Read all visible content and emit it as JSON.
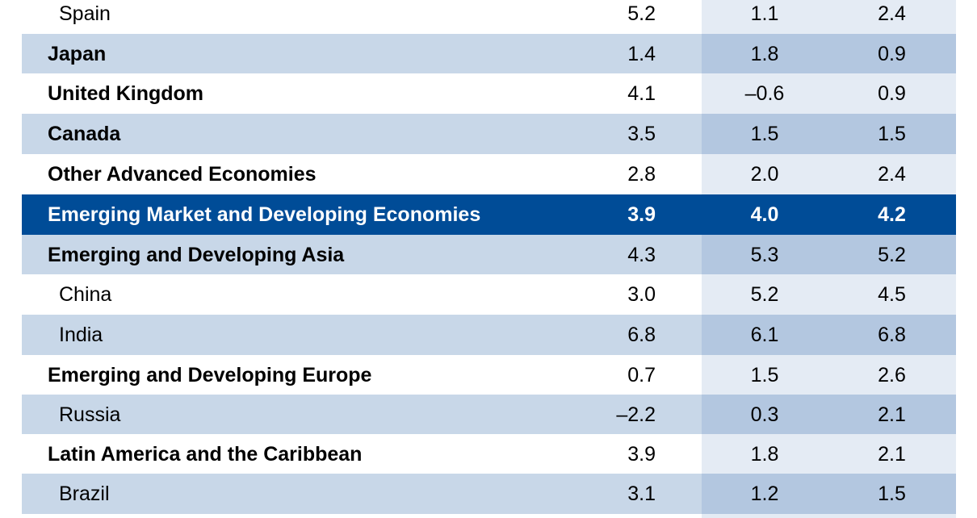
{
  "rows": [
    {
      "name": "Spain",
      "v1": "5.2",
      "v2": "1.1",
      "v3": "2.4"
    },
    {
      "name": "Japan",
      "v1": "1.4",
      "v2": "1.8",
      "v3": "0.9"
    },
    {
      "name": "United Kingdom",
      "v1": "4.1",
      "v2": "–0.6",
      "v3": "0.9"
    },
    {
      "name": "Canada",
      "v1": "3.5",
      "v2": "1.5",
      "v3": "1.5"
    },
    {
      "name": "Other Advanced Economies",
      "v1": "2.8",
      "v2": "2.0",
      "v3": "2.4"
    },
    {
      "name": "Emerging Market and Developing Economies",
      "v1": "3.9",
      "v2": "4.0",
      "v3": "4.2"
    },
    {
      "name": "Emerging and Developing Asia",
      "v1": "4.3",
      "v2": "5.3",
      "v3": "5.2"
    },
    {
      "name": "China",
      "v1": "3.0",
      "v2": "5.2",
      "v3": "4.5"
    },
    {
      "name": "India",
      "v1": "6.8",
      "v2": "6.1",
      "v3": "6.8"
    },
    {
      "name": "Emerging and Developing Europe",
      "v1": "0.7",
      "v2": "1.5",
      "v3": "2.6"
    },
    {
      "name": "Russia",
      "v1": "–2.2",
      "v2": "0.3",
      "v3": "2.1"
    },
    {
      "name": "Latin America and the Caribbean",
      "v1": "3.9",
      "v2": "1.8",
      "v3": "2.1"
    },
    {
      "name": "Brazil",
      "v1": "3.1",
      "v2": "1.2",
      "v3": "1.5"
    }
  ],
  "colors": {
    "highlight_row": "#004c97",
    "band_light": "#c8d7e8",
    "column_shade": "#b3c7e0"
  }
}
